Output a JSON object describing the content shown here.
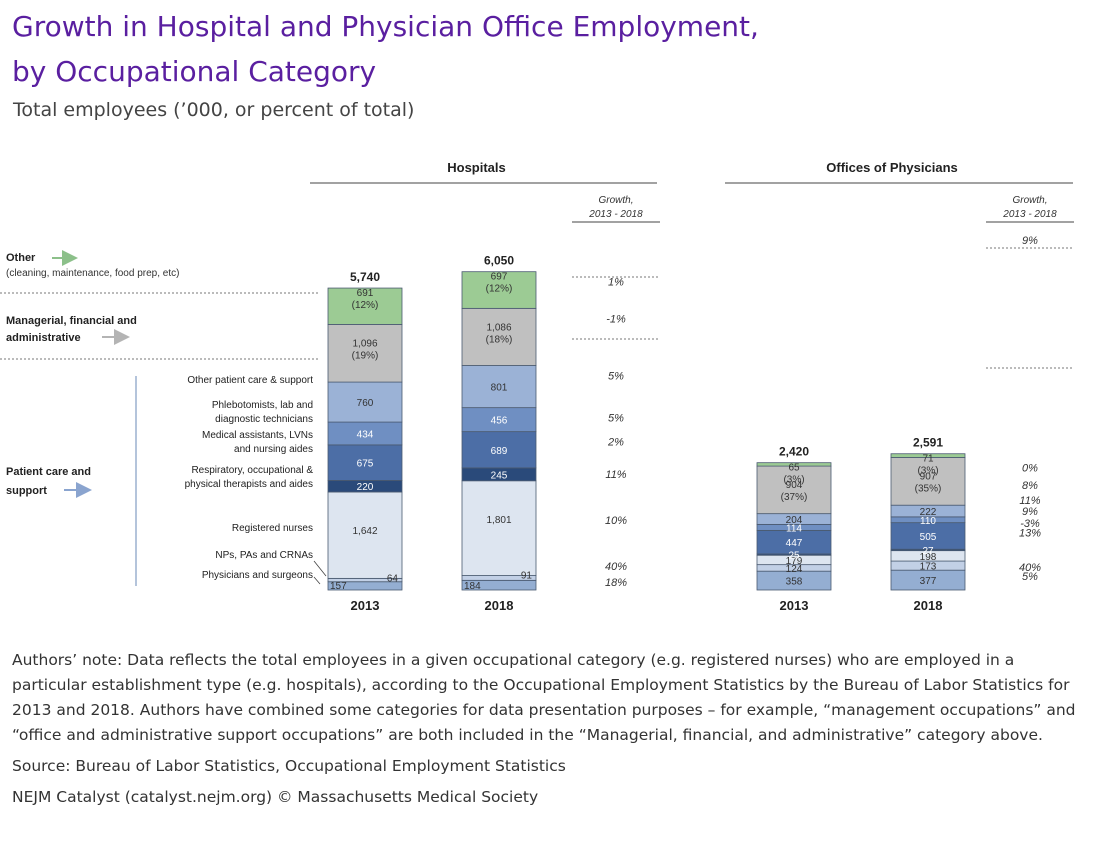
{
  "title_lines": [
    "Growth in Hospital and Physician Office Employment,",
    "by Occupational Category"
  ],
  "subtitle": "Total employees (’000, or percent of total)",
  "notes": {
    "authors_note": "Authors’ note: Data reflects the total employees in a given occupational category (e.g. registered nurses) who are employed in a particular establishment type (e.g. hospitals), according to the Occupational Employment Statistics by the Bureau of Labor Statistics for 2013 and 2018. Authors have combined some categories for data presentation purposes – for example, “management occupations” and “office and administrative support occupations” are both included in the “Managerial, financial, and administrative” category above.",
    "source": "Source: Bureau of Labor Statistics, Occupational Employment Statistics",
    "credit": "NEJM Catalyst (catalyst.nejm.org) © Massachusetts Medical Society"
  },
  "chart_data": {
    "type": "bar",
    "stacked": true,
    "growth_header": [
      "Growth,",
      "2013 - 2018"
    ],
    "group_labels": [
      {
        "name": "Other",
        "detail": "(cleaning, maintenance, food prep, etc)",
        "arrow_color": "#8cc08a"
      },
      {
        "name": "Managerial, financial and administrative",
        "lines": [
          "Managerial, financial and",
          "administrative"
        ],
        "arrow_color": "#b4b4b4"
      },
      {
        "name": "Patient care and support",
        "lines": [
          "Patient care and",
          "support"
        ],
        "arrow_color": "#8aa4cf"
      }
    ],
    "category_labels": [
      {
        "lines": [
          "Other patient care & support"
        ]
      },
      {
        "lines": [
          "Phlebotomists, lab and",
          "diagnostic technicians"
        ]
      },
      {
        "lines": [
          "Medical assistants, LVNs",
          "and nursing aides"
        ]
      },
      {
        "lines": [
          "Respiratory, occupational &",
          "physical therapists and aides"
        ]
      },
      {
        "lines": [
          "Registered nurses"
        ]
      },
      {
        "lines": [
          "NPs, PAs and CRNAs"
        ]
      },
      {
        "lines": [
          "Physicians and surgeons"
        ]
      }
    ],
    "categories_bottom_to_top": [
      "Physicians and surgeons",
      "NPs, PAs and CRNAs",
      "Registered nurses",
      "Respiratory, occupational & physical therapists and aides",
      "Medical assistants, LVNs and nursing aides",
      "Phlebotomists, lab and diagnostic technicians",
      "Other patient care & support",
      "Managerial, financial and administrative",
      "Other"
    ],
    "colors": {
      "Physicians and surgeons": "#94aed2",
      "NPs, PAs and CRNAs": "#c2d0e6",
      "Registered nurses": "#dde5f0",
      "Respiratory, occupational & physical therapists and aides": "#2a4a7a",
      "Medical assistants, LVNs and nursing aides": "#4c6ea6",
      "Phlebotomists, lab and diagnostic technicians": "#6f8fc2",
      "Other patient care & support": "#9bb2d6",
      "Managerial, financial and administrative": "#c0c0c0",
      "Other": "#9ccb94"
    },
    "panels": [
      {
        "title": "Hospitals",
        "years": [
          "2013",
          "2018"
        ],
        "totals": [
          "5,740",
          "6,050"
        ],
        "values": {
          "2013": [
            157,
            64,
            1642,
            220,
            675,
            434,
            760,
            1096,
            691
          ],
          "2018": [
            184,
            91,
            1801,
            245,
            689,
            456,
            801,
            1086,
            697
          ]
        },
        "labels": {
          "2013": [
            "157",
            "64",
            "1,642",
            "220",
            "675",
            "434",
            "760",
            "1,096",
            "691"
          ],
          "2018": [
            "184",
            "91",
            "1,801",
            "245",
            "689",
            "456",
            "801",
            "1,086",
            "697"
          ]
        },
        "shares": {
          "2013": {
            "Managerial, financial and administrative": "(19%)",
            "Other": "(12%)"
          },
          "2018": {
            "Managerial, financial and administrative": "(18%)",
            "Other": "(12%)"
          }
        },
        "growth": [
          "18%",
          "40%",
          "10%",
          "11%",
          "2%",
          "5%",
          "5%",
          "-1%",
          "1%"
        ]
      },
      {
        "title": "Offices of Physicians",
        "years": [
          "2013",
          "2018"
        ],
        "totals": [
          "2,420",
          "2,591"
        ],
        "values": {
          "2013": [
            358,
            124,
            179,
            25,
            447,
            114,
            204,
            904,
            65
          ],
          "2018": [
            377,
            173,
            198,
            27,
            505,
            110,
            222,
            907,
            71
          ]
        },
        "labels": {
          "2013": [
            "358",
            "124",
            "179",
            "25",
            "447",
            "114",
            "204",
            "904",
            "65"
          ],
          "2018": [
            "377",
            "173",
            "198",
            "27",
            "505",
            "110",
            "222",
            "907",
            "71"
          ]
        },
        "shares": {
          "2013": {
            "Managerial, financial and administrative": "(37%)",
            "Other": "(3%)"
          },
          "2018": {
            "Managerial, financial and administrative": "(35%)",
            "Other": "(3%)"
          }
        },
        "growth": [
          "5%",
          "40%",
          "11%",
          "8%",
          "13%",
          "-3%",
          "9%",
          "0%",
          "9%"
        ]
      }
    ]
  }
}
